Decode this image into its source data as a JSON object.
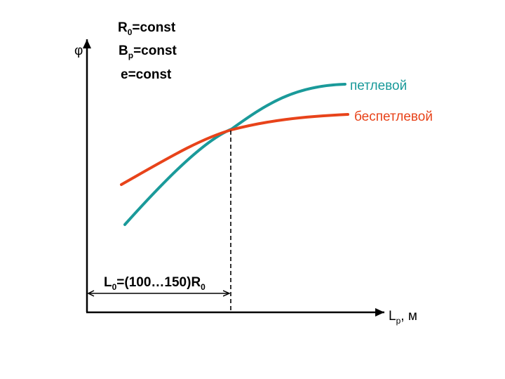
{
  "colors": {
    "loop": "#1a9a9a",
    "loopless": "#e8431a",
    "axis": "#000000"
  },
  "axes": {
    "y_label": "φ",
    "x_label_main": "L",
    "x_label_sub": "p",
    "x_label_unit": ", м"
  },
  "conditions": {
    "r0": {
      "main": "R",
      "sub": "0",
      "rest": "=const"
    },
    "bp": {
      "main": "B",
      "sub": "p",
      "rest": "=const"
    },
    "e": {
      "main": "e",
      "rest": "=const"
    }
  },
  "curves": {
    "loop_label": "петлевой",
    "loopless_label": "беспетлевой"
  },
  "range_label": {
    "part1": "L",
    "sub1": "0",
    "part2": "=(100…150)R",
    "sub2": "0"
  }
}
